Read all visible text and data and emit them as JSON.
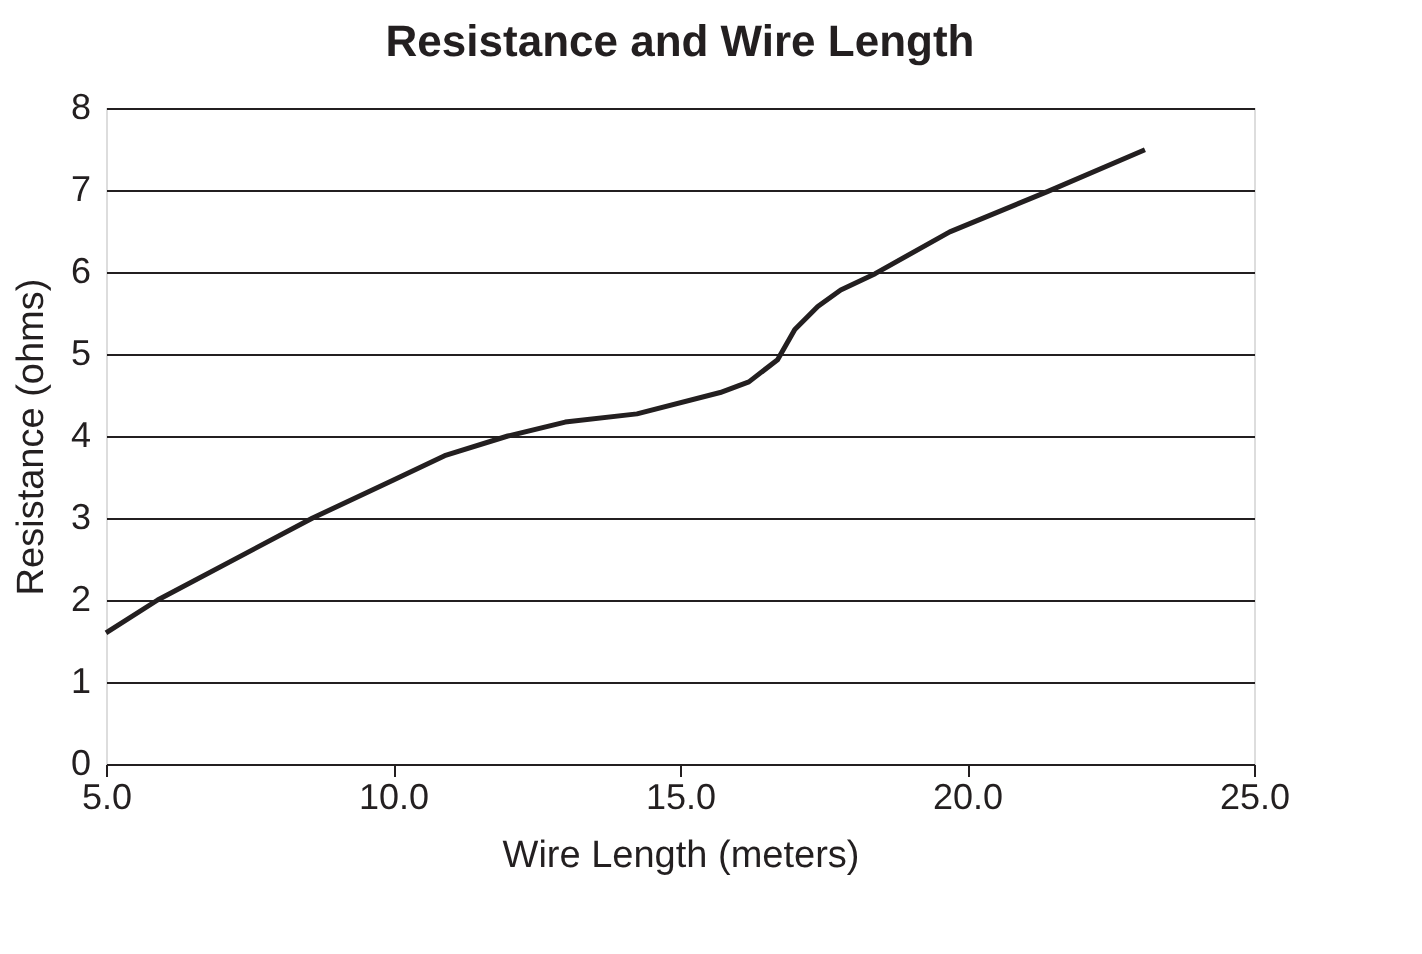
{
  "chart_data": {
    "type": "line",
    "title": "Resistance and Wire Length",
    "xlabel": "Wire Length (meters)",
    "ylabel": "Resistance (ohms)",
    "x": [
      5.0,
      5.9,
      8.6,
      10.0,
      10.9,
      12.0,
      13.0,
      14.25,
      15.7,
      16.2,
      16.7,
      17.0,
      17.4,
      17.8,
      18.4,
      19.7,
      21.4,
      23.1
    ],
    "series": [
      {
        "color": "#231f20",
        "values": [
          1.6,
          2.0,
          3.0,
          3.46,
          3.76,
          4.0,
          4.17,
          4.27,
          4.53,
          4.66,
          4.93,
          5.3,
          5.58,
          5.78,
          5.98,
          6.49,
          6.98,
          7.49
        ]
      }
    ],
    "xlim": [
      5,
      25
    ],
    "ylim": [
      0,
      8
    ],
    "xticks": [
      {
        "value": 5,
        "label": "5.0"
      },
      {
        "value": 10,
        "label": "10.0"
      },
      {
        "value": 15,
        "label": "15.0"
      },
      {
        "value": 20,
        "label": "20.0"
      },
      {
        "value": 25,
        "label": "25.0"
      }
    ],
    "yticks": [
      0,
      1,
      2,
      3,
      4,
      5,
      6,
      7,
      8
    ],
    "grid": "y",
    "marker": "none",
    "line_style": "solid"
  }
}
